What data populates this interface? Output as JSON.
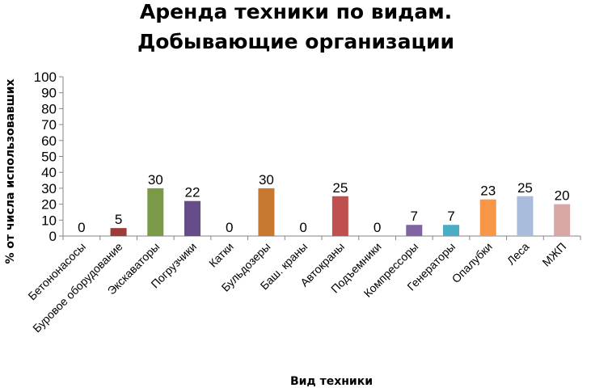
{
  "chart_data": {
    "type": "bar",
    "title_lines": [
      "Аренда техники по видам.",
      "Добывающие организации"
    ],
    "xlabel": "Вид техники",
    "ylabel": "% от числа использовавших",
    "ylim": [
      0,
      100
    ],
    "yticks": [
      0,
      10,
      20,
      30,
      40,
      50,
      60,
      70,
      80,
      90,
      100
    ],
    "grid": false,
    "categories": [
      "Бетононасосы",
      "Буровое оборудование",
      "Экскаваторы",
      "Погрузчики",
      "Катки",
      "Бульдозеры",
      "Баш. краны",
      "Автокраны",
      "Подъемники",
      "Компрессоры",
      "Генераторы",
      "Опалубки",
      "Леса",
      "МЖП"
    ],
    "values": [
      0,
      5,
      30,
      22,
      0,
      30,
      0,
      25,
      0,
      7,
      7,
      23,
      25,
      20
    ],
    "colors": [
      "#4F81BD",
      "#9E3B3B",
      "#7A9A47",
      "#664D8A",
      "#4BACC6",
      "#C9792F",
      "#4F81BD",
      "#C0504D",
      "#9BBB59",
      "#8064A2",
      "#4BACC6",
      "#F79646",
      "#A9BCDC",
      "#DAA7A7"
    ]
  }
}
